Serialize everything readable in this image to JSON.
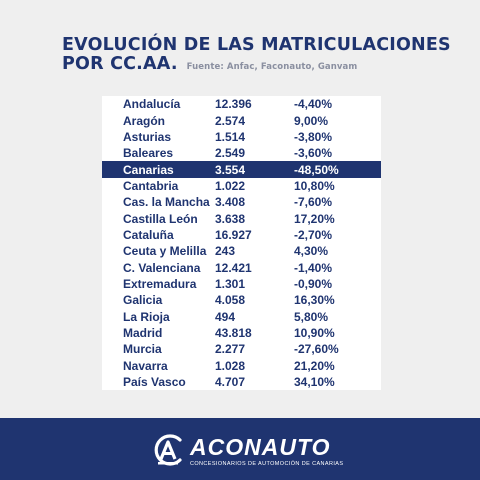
{
  "header": {
    "title_line1": "EVOLUCIÓN DE LAS MATRICULACIONES",
    "title_line2": "POR CC.AA.",
    "source": "Fuente: Anfac, Faconauto, Ganvam"
  },
  "colors": {
    "navy": "#1f3470",
    "background": "#efefef",
    "row_bg": "#ffffff"
  },
  "table": {
    "rows": [
      {
        "region": "Andalucía",
        "count": "12.396",
        "change": "-4,40%",
        "highlight": false
      },
      {
        "region": "Aragón",
        "count": "2.574",
        "change": "9,00%",
        "highlight": false
      },
      {
        "region": "Asturias",
        "count": "1.514",
        "change": "-3,80%",
        "highlight": false
      },
      {
        "region": "Baleares",
        "count": "2.549",
        "change": "-3,60%",
        "highlight": false
      },
      {
        "region": "Canarias",
        "count": "3.554",
        "change": "-48,50%",
        "highlight": true
      },
      {
        "region": "Cantabria",
        "count": "1.022",
        "change": "10,80%",
        "highlight": false
      },
      {
        "region": "Cas. la Mancha",
        "count": "3.408",
        "change": "-7,60%",
        "highlight": false
      },
      {
        "region": "Castilla León",
        "count": "3.638",
        "change": "17,20%",
        "highlight": false
      },
      {
        "region": "Cataluña",
        "count": "16.927",
        "change": "-2,70%",
        "highlight": false
      },
      {
        "region": "Ceuta y Melilla",
        "count": "243",
        "change": "4,30%",
        "highlight": false
      },
      {
        "region": "C. Valenciana",
        "count": "12.421",
        "change": "-1,40%",
        "highlight": false
      },
      {
        "region": "Extremadura",
        "count": "1.301",
        "change": "-0,90%",
        "highlight": false
      },
      {
        "region": "Galicia",
        "count": "4.058",
        "change": "16,30%",
        "highlight": false
      },
      {
        "region": "La Rioja",
        "count": "494",
        "change": "5,80%",
        "highlight": false
      },
      {
        "region": "Madrid",
        "count": "43.818",
        "change": "10,90%",
        "highlight": false
      },
      {
        "region": "Murcia",
        "count": "2.277",
        "change": "-27,60%",
        "highlight": false
      },
      {
        "region": "Navarra",
        "count": "1.028",
        "change": "21,20%",
        "highlight": false
      },
      {
        "region": "País Vasco",
        "count": "4.707",
        "change": "34,10%",
        "highlight": false
      }
    ]
  },
  "footer": {
    "logo_name": "ACONAUTO",
    "logo_tagline": "CONCESIONARIOS DE AUTOMOCIÓN DE CANARIAS",
    "logo_icon": "aconauto-logo-icon"
  }
}
